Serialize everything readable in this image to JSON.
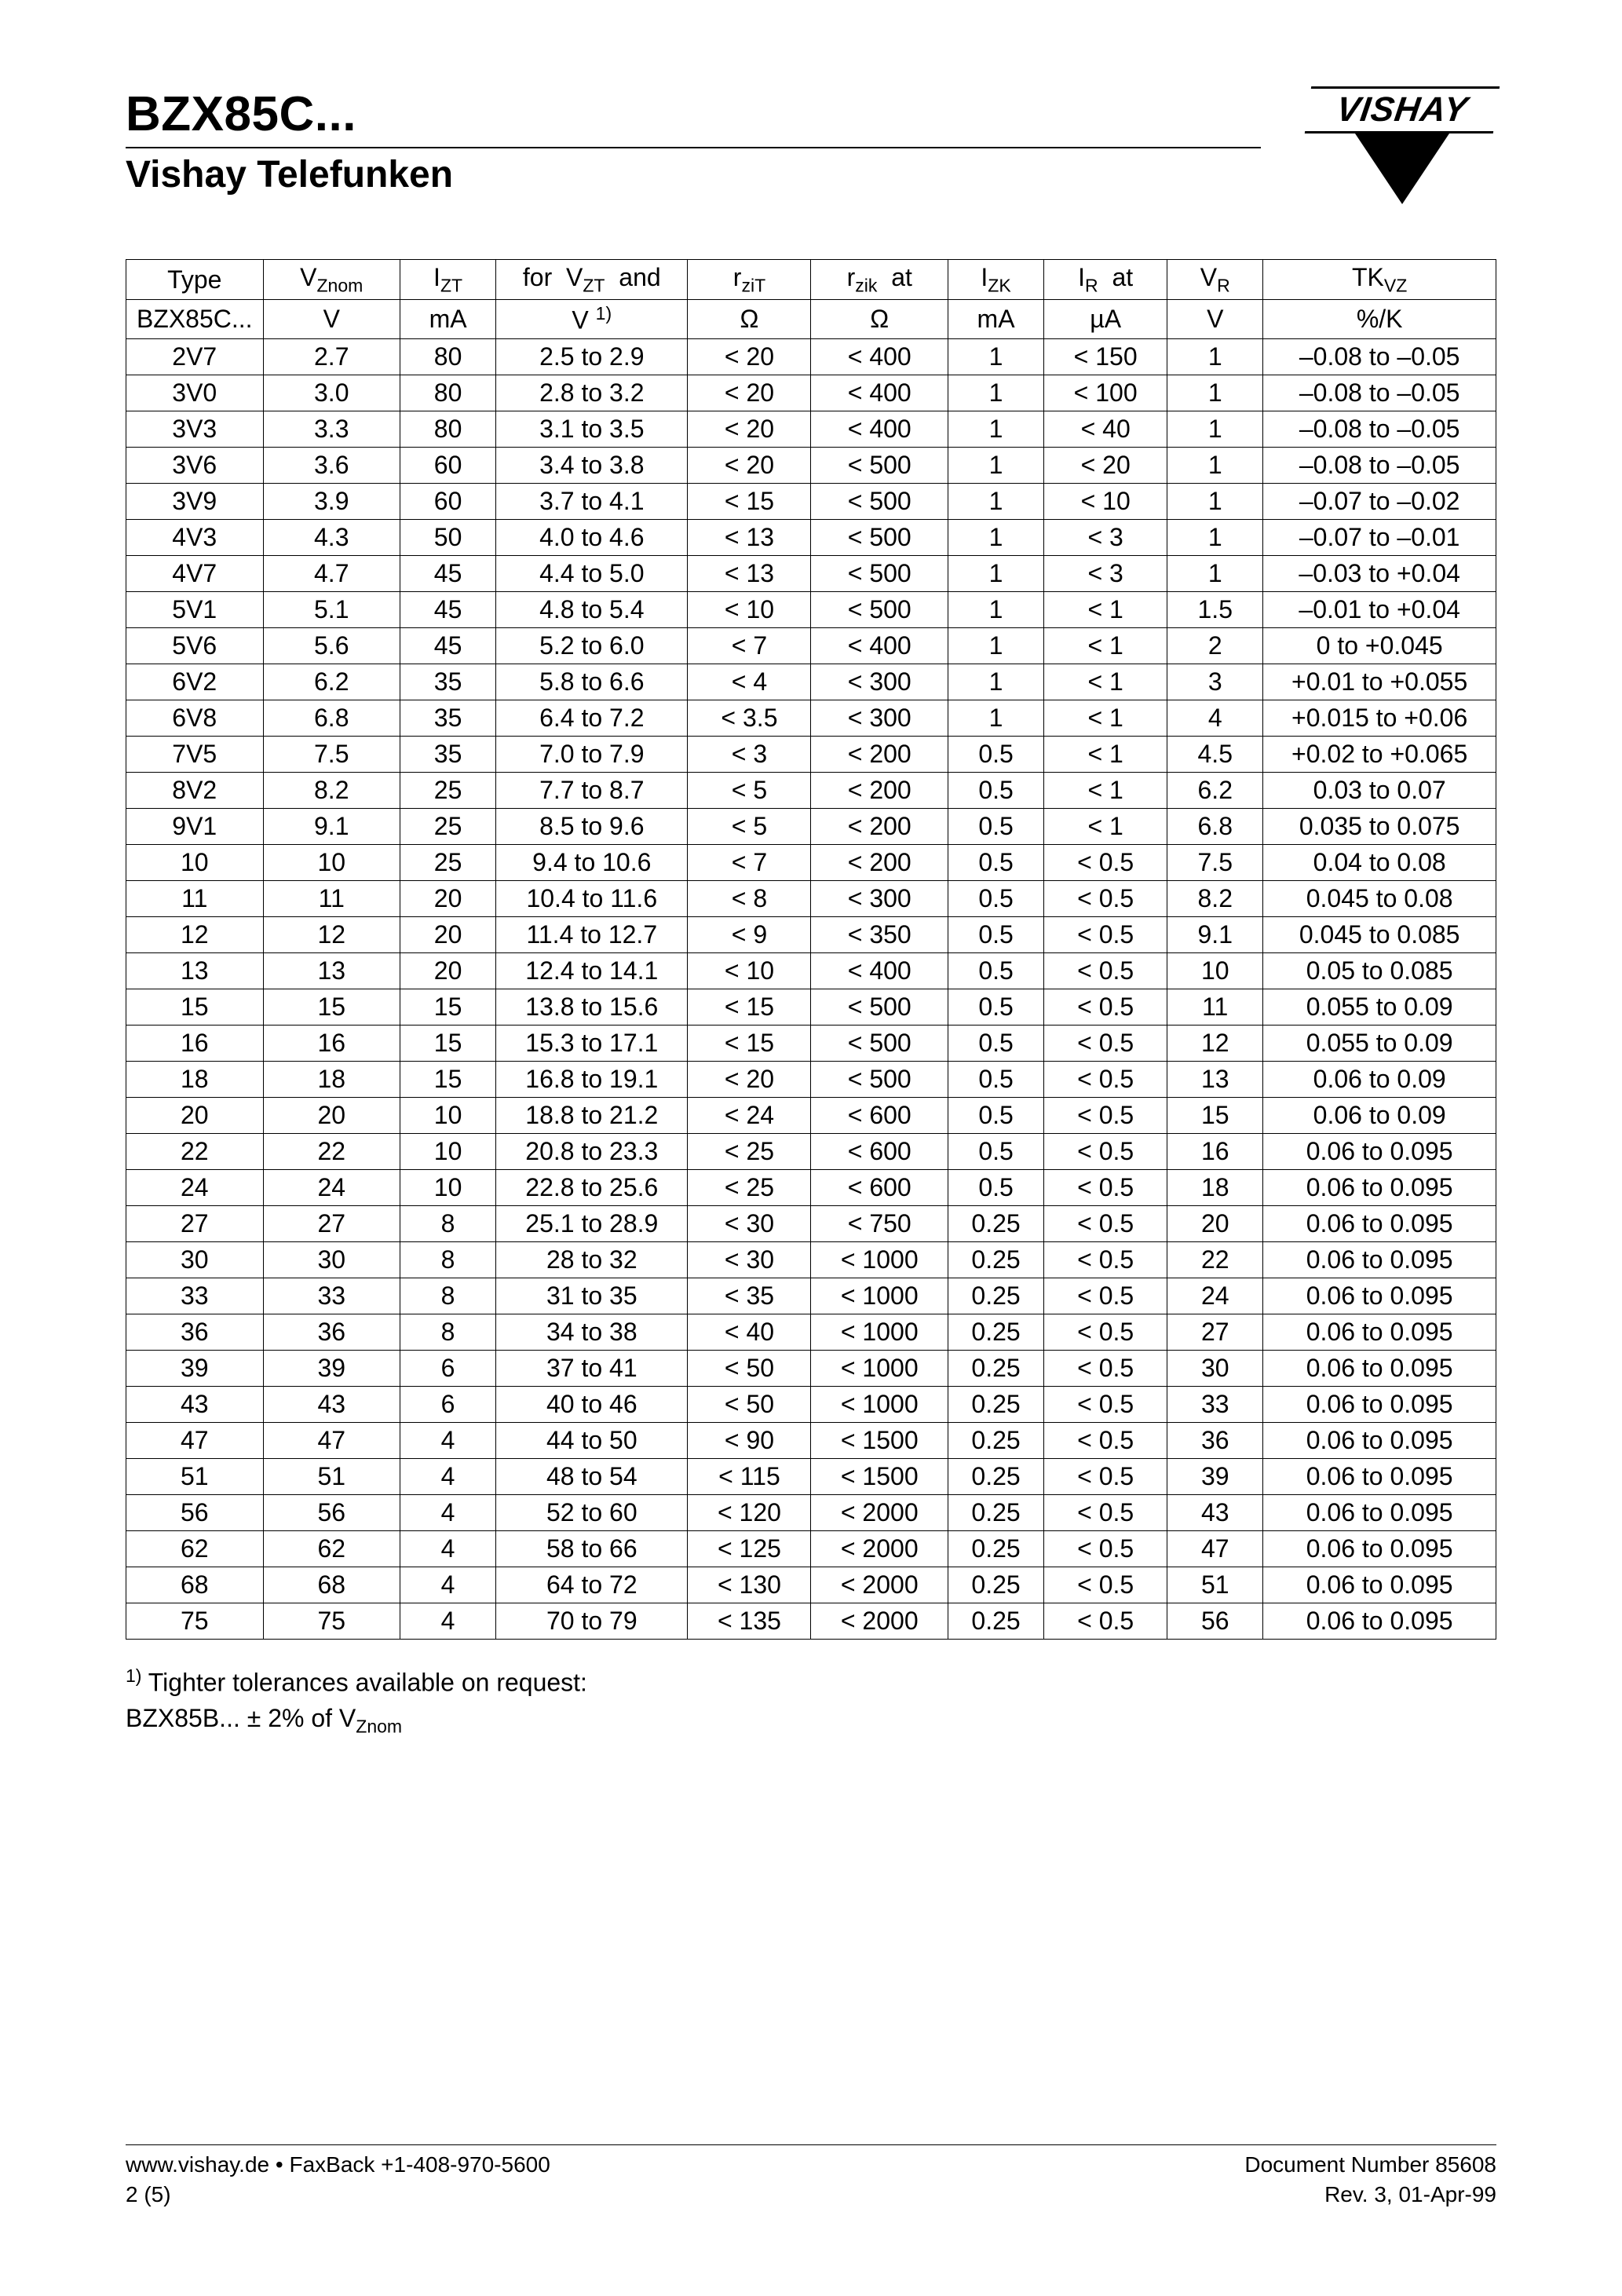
{
  "header": {
    "title_main": "BZX85C...",
    "title_sub": "Vishay Telefunken",
    "logo_text": "VISHAY"
  },
  "table": {
    "col_widths_pct": [
      10,
      10,
      7,
      14,
      9,
      10,
      7,
      9,
      7,
      17
    ],
    "header_row1": [
      {
        "html": "Type"
      },
      {
        "html": "V<span class='sub'>Znom</span>"
      },
      {
        "html": "I<span class='sub'>ZT</span>",
        "colspan": 1
      },
      {
        "html": "for&nbsp;&nbsp;V<span class='sub'>ZT</span>&nbsp;&nbsp;and",
        "border_left": false,
        "border_right": false
      },
      {
        "html": "r<span class='sub'>ziT</span>"
      },
      {
        "html": "r<span class='sub'>zik</span>&nbsp;&nbsp;at",
        "border_right": false
      },
      {
        "html": "I<span class='sub'>ZK</span>"
      },
      {
        "html": "I<span class='sub'>R</span>&nbsp;&nbsp;at",
        "border_right": false
      },
      {
        "html": "V<span class='sub'>R</span>"
      },
      {
        "html": "TK<span class='sub'>VZ</span>"
      }
    ],
    "header_row2": [
      {
        "html": "BZX85C..."
      },
      {
        "html": "V"
      },
      {
        "html": "mA"
      },
      {
        "html": "V <span class='sup'>1)</span>"
      },
      {
        "html": "Ω"
      },
      {
        "html": "Ω"
      },
      {
        "html": "mA"
      },
      {
        "html": "µA"
      },
      {
        "html": "V"
      },
      {
        "html": "%/K"
      }
    ],
    "rows": [
      [
        "2V7",
        "2.7",
        "80",
        "2.5 to 2.9",
        "< 20",
        "< 400",
        "1",
        "< 150",
        "1",
        "–0.08 to –0.05"
      ],
      [
        "3V0",
        "3.0",
        "80",
        "2.8 to 3.2",
        "< 20",
        "< 400",
        "1",
        "< 100",
        "1",
        "–0.08 to –0.05"
      ],
      [
        "3V3",
        "3.3",
        "80",
        "3.1 to 3.5",
        "< 20",
        "< 400",
        "1",
        "< 40",
        "1",
        "–0.08 to –0.05"
      ],
      [
        "3V6",
        "3.6",
        "60",
        "3.4 to 3.8",
        "< 20",
        "< 500",
        "1",
        "< 20",
        "1",
        "–0.08 to –0.05"
      ],
      [
        "3V9",
        "3.9",
        "60",
        "3.7 to 4.1",
        "< 15",
        "< 500",
        "1",
        "< 10",
        "1",
        "–0.07 to –0.02"
      ],
      [
        "4V3",
        "4.3",
        "50",
        "4.0 to 4.6",
        "< 13",
        "< 500",
        "1",
        "< 3",
        "1",
        "–0.07 to –0.01"
      ],
      [
        "4V7",
        "4.7",
        "45",
        "4.4 to 5.0",
        "< 13",
        "< 500",
        "1",
        "< 3",
        "1",
        "–0.03 to +0.04"
      ],
      [
        "5V1",
        "5.1",
        "45",
        "4.8 to 5.4",
        "< 10",
        "< 500",
        "1",
        "< 1",
        "1.5",
        "–0.01 to +0.04"
      ],
      [
        "5V6",
        "5.6",
        "45",
        "5.2 to 6.0",
        "< 7",
        "< 400",
        "1",
        "< 1",
        "2",
        "0 to +0.045"
      ],
      [
        "6V2",
        "6.2",
        "35",
        "5.8 to 6.6",
        "< 4",
        "< 300",
        "1",
        "< 1",
        "3",
        "+0.01 to +0.055"
      ],
      [
        "6V8",
        "6.8",
        "35",
        "6.4 to 7.2",
        "< 3.5",
        "< 300",
        "1",
        "< 1",
        "4",
        "+0.015 to +0.06"
      ],
      [
        "7V5",
        "7.5",
        "35",
        "7.0 to 7.9",
        "< 3",
        "< 200",
        "0.5",
        "< 1",
        "4.5",
        "+0.02 to +0.065"
      ],
      [
        "8V2",
        "8.2",
        "25",
        "7.7 to 8.7",
        "< 5",
        "< 200",
        "0.5",
        "< 1",
        "6.2",
        "0.03 to 0.07"
      ],
      [
        "9V1",
        "9.1",
        "25",
        "8.5 to 9.6",
        "< 5",
        "< 200",
        "0.5",
        "< 1",
        "6.8",
        "0.035 to 0.075"
      ],
      [
        "10",
        "10",
        "25",
        "9.4 to 10.6",
        "< 7",
        "< 200",
        "0.5",
        "< 0.5",
        "7.5",
        "0.04 to 0.08"
      ],
      [
        "11",
        "11",
        "20",
        "10.4 to 11.6",
        "< 8",
        "< 300",
        "0.5",
        "< 0.5",
        "8.2",
        "0.045 to 0.08"
      ],
      [
        "12",
        "12",
        "20",
        "11.4 to 12.7",
        "< 9",
        "< 350",
        "0.5",
        "< 0.5",
        "9.1",
        "0.045 to 0.085"
      ],
      [
        "13",
        "13",
        "20",
        "12.4 to 14.1",
        "< 10",
        "< 400",
        "0.5",
        "< 0.5",
        "10",
        "0.05 to 0.085"
      ],
      [
        "15",
        "15",
        "15",
        "13.8 to 15.6",
        "< 15",
        "< 500",
        "0.5",
        "< 0.5",
        "11",
        "0.055 to 0.09"
      ],
      [
        "16",
        "16",
        "15",
        "15.3 to 17.1",
        "< 15",
        "< 500",
        "0.5",
        "< 0.5",
        "12",
        "0.055 to 0.09"
      ],
      [
        "18",
        "18",
        "15",
        "16.8 to 19.1",
        "< 20",
        "< 500",
        "0.5",
        "< 0.5",
        "13",
        "0.06 to 0.09"
      ],
      [
        "20",
        "20",
        "10",
        "18.8 to 21.2",
        "< 24",
        "< 600",
        "0.5",
        "< 0.5",
        "15",
        "0.06 to 0.09"
      ],
      [
        "22",
        "22",
        "10",
        "20.8 to 23.3",
        "< 25",
        "< 600",
        "0.5",
        "< 0.5",
        "16",
        "0.06 to 0.095"
      ],
      [
        "24",
        "24",
        "10",
        "22.8 to 25.6",
        "< 25",
        "< 600",
        "0.5",
        "< 0.5",
        "18",
        "0.06 to 0.095"
      ],
      [
        "27",
        "27",
        "8",
        "25.1 to 28.9",
        "< 30",
        "< 750",
        "0.25",
        "< 0.5",
        "20",
        "0.06 to 0.095"
      ],
      [
        "30",
        "30",
        "8",
        "28 to 32",
        "< 30",
        "< 1000",
        "0.25",
        "< 0.5",
        "22",
        "0.06 to 0.095"
      ],
      [
        "33",
        "33",
        "8",
        "31 to 35",
        "< 35",
        "< 1000",
        "0.25",
        "< 0.5",
        "24",
        "0.06 to 0.095"
      ],
      [
        "36",
        "36",
        "8",
        "34 to 38",
        "< 40",
        "< 1000",
        "0.25",
        "< 0.5",
        "27",
        "0.06 to 0.095"
      ],
      [
        "39",
        "39",
        "6",
        "37 to 41",
        "< 50",
        "< 1000",
        "0.25",
        "< 0.5",
        "30",
        "0.06 to 0.095"
      ],
      [
        "43",
        "43",
        "6",
        "40 to 46",
        "< 50",
        "< 1000",
        "0.25",
        "< 0.5",
        "33",
        "0.06 to 0.095"
      ],
      [
        "47",
        "47",
        "4",
        "44 to 50",
        "< 90",
        "< 1500",
        "0.25",
        "< 0.5",
        "36",
        "0.06 to 0.095"
      ],
      [
        "51",
        "51",
        "4",
        "48 to 54",
        "< 115",
        "< 1500",
        "0.25",
        "< 0.5",
        "39",
        "0.06 to 0.095"
      ],
      [
        "56",
        "56",
        "4",
        "52 to 60",
        "< 120",
        "< 2000",
        "0.25",
        "< 0.5",
        "43",
        "0.06 to 0.095"
      ],
      [
        "62",
        "62",
        "4",
        "58 to 66",
        "< 125",
        "< 2000",
        "0.25",
        "< 0.5",
        "47",
        "0.06 to 0.095"
      ],
      [
        "68",
        "68",
        "4",
        "64 to 72",
        "< 130",
        "< 2000",
        "0.25",
        "< 0.5",
        "51",
        "0.06 to 0.095"
      ],
      [
        "75",
        "75",
        "4",
        "70 to 79",
        "< 135",
        "< 2000",
        "0.25",
        "< 0.5",
        "56",
        "0.06 to 0.095"
      ]
    ]
  },
  "footnote": {
    "line1_pre_sup": "",
    "line1_sup": "1)",
    "line1_post": " Tighter tolerances available on request:",
    "line2_pre": "BZX85B...  ± 2% of V",
    "line2_sub": "Znom"
  },
  "footer": {
    "left_line1": "www.vishay.de • FaxBack +1-408-970-5600",
    "left_line2": "2 (5)",
    "right_line1": "Document Number 85608",
    "right_line2": "Rev. 3, 01-Apr-99"
  }
}
